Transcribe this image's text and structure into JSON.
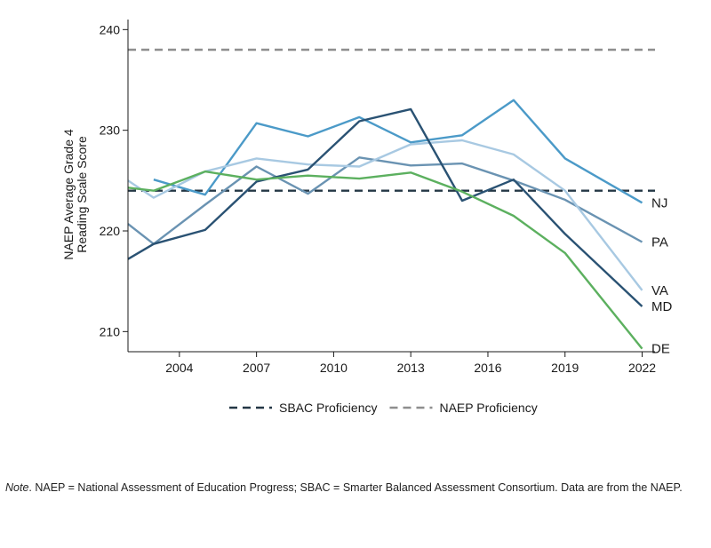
{
  "chart_data": {
    "type": "line",
    "title": "",
    "xlabel": "",
    "ylabel": "NAEP Average Grade 4 Reading Scale Score",
    "ylabel_lines": [
      "NAEP Average Grade 4",
      "Reading Scale Score"
    ],
    "xlim": [
      2002,
      2022.5
    ],
    "ylim": [
      208,
      241
    ],
    "xticks": [
      2004,
      2007,
      2010,
      2013,
      2016,
      2019,
      2022
    ],
    "yticks": [
      210,
      220,
      230,
      240
    ],
    "grid": false,
    "legend_position": "bottom",
    "reference_lines": [
      {
        "name": "SBAC Proficiency",
        "value": 224,
        "color": "#243746",
        "style": "dashed"
      },
      {
        "name": "NAEP Proficiency",
        "value": 238,
        "color": "#8e8e8e",
        "style": "dashed"
      }
    ],
    "series": [
      {
        "name": "NJ",
        "color": "#4b9ac8",
        "x": [
          2003,
          2005,
          2007,
          2009,
          2011,
          2013,
          2015,
          2017,
          2019,
          2022
        ],
        "y": [
          225.1,
          223.6,
          230.7,
          229.4,
          231.3,
          228.8,
          229.5,
          233.0,
          227.2,
          222.8
        ]
      },
      {
        "name": "PA",
        "color": "#6a93b2",
        "x": [
          2002,
          2003,
          2005,
          2007,
          2009,
          2011,
          2013,
          2015,
          2017,
          2019,
          2022
        ],
        "y": [
          220.7,
          218.7,
          222.6,
          226.4,
          223.7,
          227.3,
          226.5,
          226.7,
          225.0,
          223.1,
          218.9
        ]
      },
      {
        "name": "VA",
        "color": "#a8c9e2",
        "x": [
          2002,
          2003,
          2005,
          2007,
          2009,
          2011,
          2013,
          2015,
          2017,
          2019,
          2022
        ],
        "y": [
          225.0,
          223.3,
          225.9,
          227.2,
          226.6,
          226.4,
          228.6,
          229.0,
          227.6,
          224.0,
          214.1
        ]
      },
      {
        "name": "MD",
        "color": "#2a5273",
        "x": [
          2002,
          2003,
          2005,
          2007,
          2009,
          2011,
          2013,
          2015,
          2017,
          2019,
          2022
        ],
        "y": [
          217.2,
          218.7,
          220.1,
          224.9,
          226.1,
          230.9,
          232.1,
          223.0,
          225.1,
          219.7,
          212.5
        ]
      },
      {
        "name": "DE",
        "color": "#5cb05f",
        "x": [
          2002,
          2003,
          2005,
          2007,
          2009,
          2011,
          2013,
          2015,
          2017,
          2019,
          2022
        ],
        "y": [
          224.3,
          224.0,
          225.9,
          225.1,
          225.5,
          225.2,
          225.8,
          223.9,
          221.5,
          217.8,
          208.3
        ]
      }
    ]
  },
  "note": {
    "prefix": "Note",
    "text": ". NAEP = National Assessment of Education Progress; SBAC = Smarter Balanced Assessment Consortium. Data are from the NAEP."
  }
}
